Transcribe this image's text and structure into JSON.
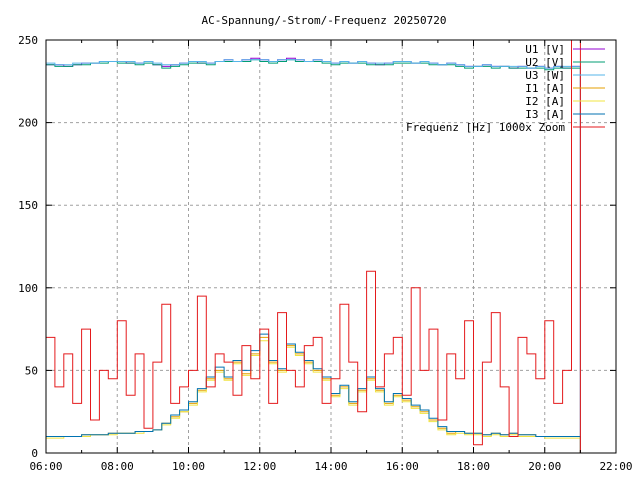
{
  "chart_data": {
    "type": "line",
    "title": "AC-Spannung/-Strom/-Frequenz 20250720",
    "xlabel": "",
    "ylabel": "",
    "xlim": [
      "06:00",
      "22:00"
    ],
    "ylim": [
      0,
      250
    ],
    "x_ticks": [
      "06:00",
      "08:00",
      "10:00",
      "12:00",
      "14:00",
      "16:00",
      "18:00",
      "20:00",
      "22:00"
    ],
    "y_ticks": [
      "0",
      "50",
      "100",
      "150",
      "200",
      "250"
    ],
    "grid": true,
    "legend_position": "top-right",
    "x": [
      "06:00",
      "06:15",
      "06:30",
      "06:45",
      "07:00",
      "07:15",
      "07:30",
      "07:45",
      "08:00",
      "08:15",
      "08:30",
      "08:45",
      "09:00",
      "09:15",
      "09:30",
      "09:45",
      "10:00",
      "10:15",
      "10:30",
      "10:45",
      "11:00",
      "11:15",
      "11:30",
      "11:45",
      "12:00",
      "12:15",
      "12:30",
      "12:45",
      "13:00",
      "13:15",
      "13:30",
      "13:45",
      "14:00",
      "14:15",
      "14:30",
      "14:45",
      "15:00",
      "15:15",
      "15:30",
      "15:45",
      "16:00",
      "16:15",
      "16:30",
      "16:45",
      "17:00",
      "17:15",
      "17:30",
      "17:45",
      "18:00",
      "18:15",
      "18:30",
      "18:45",
      "19:00",
      "19:15",
      "19:30",
      "19:45",
      "20:00",
      "20:15",
      "20:30",
      "20:45"
    ],
    "series": [
      {
        "name": "U1 [V]",
        "color": "#9400d3",
        "values": [
          235,
          235,
          234,
          235,
          236,
          236,
          237,
          237,
          237,
          236,
          236,
          237,
          235,
          234,
          235,
          236,
          237,
          236,
          236,
          237,
          238,
          237,
          238,
          239,
          238,
          237,
          238,
          239,
          238,
          237,
          238,
          237,
          236,
          237,
          236,
          237,
          236,
          235,
          236,
          237,
          237,
          236,
          237,
          236,
          235,
          236,
          235,
          234,
          234,
          235,
          234,
          234,
          233,
          234,
          233,
          234,
          233,
          234,
          233,
          234
        ]
      },
      {
        "name": "U2 [V]",
        "color": "#009e73",
        "values": [
          235,
          234,
          234,
          235,
          235,
          236,
          236,
          237,
          236,
          236,
          235,
          236,
          235,
          233,
          234,
          235,
          236,
          236,
          235,
          237,
          237,
          237,
          237,
          238,
          237,
          236,
          237,
          238,
          237,
          237,
          237,
          236,
          235,
          236,
          236,
          236,
          235,
          235,
          235,
          236,
          236,
          236,
          236,
          235,
          235,
          235,
          234,
          233,
          234,
          234,
          233,
          234,
          233,
          233,
          233,
          233,
          232,
          233,
          233,
          233
        ]
      },
      {
        "name": "U3 [W]",
        "color": "#56b4e9",
        "values": [
          236,
          235,
          235,
          236,
          236,
          236,
          237,
          237,
          237,
          237,
          236,
          237,
          236,
          235,
          235,
          236,
          237,
          237,
          236,
          237,
          238,
          237,
          238,
          238,
          238,
          237,
          238,
          238,
          238,
          237,
          238,
          237,
          236,
          237,
          236,
          237,
          236,
          236,
          236,
          237,
          237,
          236,
          237,
          236,
          235,
          236,
          235,
          234,
          234,
          235,
          234,
          234,
          234,
          234,
          233,
          234,
          233,
          234,
          234,
          234
        ]
      },
      {
        "name": "I1 [A]",
        "color": "#e69f00",
        "values": [
          10,
          10,
          10,
          10,
          11,
          11,
          11,
          12,
          12,
          12,
          13,
          13,
          14,
          18,
          22,
          25,
          30,
          38,
          45,
          50,
          45,
          55,
          48,
          60,
          70,
          55,
          50,
          65,
          60,
          55,
          50,
          45,
          35,
          40,
          30,
          38,
          45,
          38,
          30,
          35,
          32,
          28,
          25,
          20,
          15,
          12,
          13,
          12,
          12,
          11,
          12,
          11,
          12,
          11,
          11,
          10,
          10,
          10,
          10,
          10
        ]
      },
      {
        "name": "I2 [A]",
        "color": "#f0e442",
        "values": [
          9,
          9,
          10,
          10,
          10,
          11,
          11,
          11,
          12,
          12,
          12,
          13,
          14,
          17,
          21,
          25,
          29,
          37,
          44,
          49,
          44,
          54,
          47,
          59,
          68,
          54,
          49,
          64,
          59,
          54,
          49,
          44,
          34,
          39,
          29,
          37,
          44,
          37,
          29,
          34,
          31,
          27,
          24,
          19,
          14,
          11,
          12,
          11,
          11,
          10,
          11,
          10,
          11,
          10,
          10,
          10,
          9,
          9,
          9,
          9
        ]
      },
      {
        "name": "I3 [A]",
        "color": "#0072b2",
        "values": [
          10,
          10,
          10,
          10,
          11,
          11,
          11,
          12,
          12,
          12,
          13,
          13,
          14,
          18,
          23,
          26,
          31,
          39,
          46,
          52,
          46,
          56,
          50,
          62,
          72,
          56,
          51,
          66,
          61,
          56,
          51,
          46,
          36,
          41,
          31,
          39,
          46,
          39,
          31,
          36,
          33,
          29,
          26,
          21,
          16,
          13,
          13,
          12,
          12,
          11,
          12,
          11,
          12,
          11,
          11,
          10,
          10,
          10,
          10,
          10
        ]
      },
      {
        "name": "Frequenz [Hz] 1000x Zoom",
        "color": "#e41a1c",
        "values": [
          70,
          40,
          60,
          30,
          75,
          20,
          50,
          45,
          80,
          35,
          60,
          15,
          55,
          90,
          30,
          40,
          50,
          95,
          40,
          60,
          55,
          35,
          65,
          45,
          75,
          30,
          85,
          50,
          40,
          65,
          70,
          30,
          45,
          90,
          55,
          25,
          110,
          40,
          60,
          70,
          35,
          100,
          50,
          75,
          20,
          60,
          45,
          80,
          5,
          55,
          85,
          40,
          10,
          70,
          60,
          45,
          80,
          30,
          50,
          250
        ]
      }
    ]
  }
}
